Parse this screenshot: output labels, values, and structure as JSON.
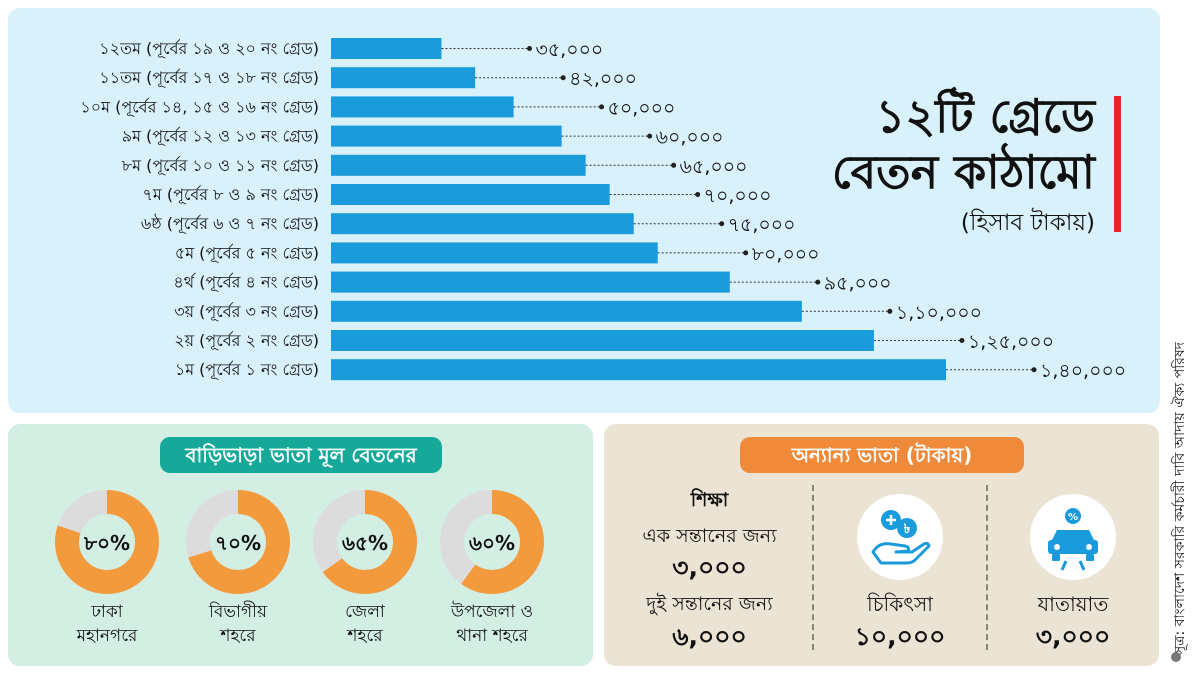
{
  "title": {
    "line1": "১২টি গ্রেডে",
    "line2": "বেতন কাঠামো",
    "sub": "(হিসাব টাকায়)"
  },
  "chart_data": {
    "type": "bar",
    "orientation": "horizontal",
    "categories": [
      "১২তম (পূর্বের ১৯ ও ২০ নং গ্রেড)",
      "১১তম (পূর্বের ১৭ ও ১৮ নং গ্রেড)",
      "১০ম (পূর্বের ১৪, ১৫ ও ১৬ নং গ্রেড)",
      "৯ম (পূর্বের ১২ ও ১৩ নং গ্রেড)",
      "৮ম (পূর্বের ১০ ও ১১ নং গ্রেড)",
      "৭ম (পূর্বের ৮ ও ৯ নং গ্রেড)",
      "৬ষ্ঠ (পূর্বের ৬ ও ৭ নং গ্রেড)",
      "৫ম (পূর্বের ৫ নং গ্রেড)",
      "৪র্থ (পূর্বের ৪ নং গ্রেড)",
      "৩য় (পূর্বের ৩ নং গ্রেড)",
      "২য় (পূর্বের ২ নং গ্রেড)",
      "১ম (পূর্বের ১ নং গ্রেড)"
    ],
    "values": [
      35000,
      42000,
      50000,
      60000,
      65000,
      70000,
      75000,
      80000,
      95000,
      110000,
      125000,
      140000
    ],
    "value_labels": [
      "৩৫,০০০",
      "৪২,০০০",
      "৫০,০০০",
      "৬০,০০০",
      "৬৫,০০০",
      "৭০,০০০",
      "৭৫,০০০",
      "৮০,০০০",
      "৯৫,০০০",
      "১,১০,০০০",
      "১,২৫,০০০",
      "১,৪০,০০০"
    ],
    "bar_color": "#1a9bdc",
    "xlim": [
      12000,
      140000
    ]
  },
  "house_rent": {
    "title": "বাড়িভাড়া ভাতা মূল বেতনের",
    "items": [
      {
        "percent": 80,
        "label": "৮০%",
        "city": "ঢাকা",
        "city2": "মহানগরে"
      },
      {
        "percent": 70,
        "label": "৭০%",
        "city": "বিভাগীয়",
        "city2": "শহরে"
      },
      {
        "percent": 65,
        "label": "৬৫%",
        "city": "জেলা",
        "city2": "শহরে"
      },
      {
        "percent": 60,
        "label": "৬০%",
        "city": "উপজেলা ও",
        "city2": "থানা শহরে"
      }
    ],
    "fill_color": "#f39a3c",
    "track_color": "#dcdcdc"
  },
  "other_allowance": {
    "title": "অন্যান্য ভাতা (টাকায়)",
    "education": {
      "heading": "শিক্ষা",
      "one_child_label": "এক সন্তানের জন্য",
      "one_child_value": "৩,০০০",
      "two_child_label": "দুই সন্তানের জন্য",
      "two_child_value": "৬,০০০"
    },
    "medical": {
      "label": "চিকিৎসা",
      "value": "১০,০০০",
      "icon": "medical-hand-icon"
    },
    "transport": {
      "label": "যাতায়াত",
      "value": "৩,০০০",
      "icon": "car-icon"
    },
    "icon_color": "#1a9bdc"
  },
  "source": "সূত্র: বাংলাদেশ সরকারি কর্মচারী দাবি আদায় ঐক্য পরিষদ"
}
